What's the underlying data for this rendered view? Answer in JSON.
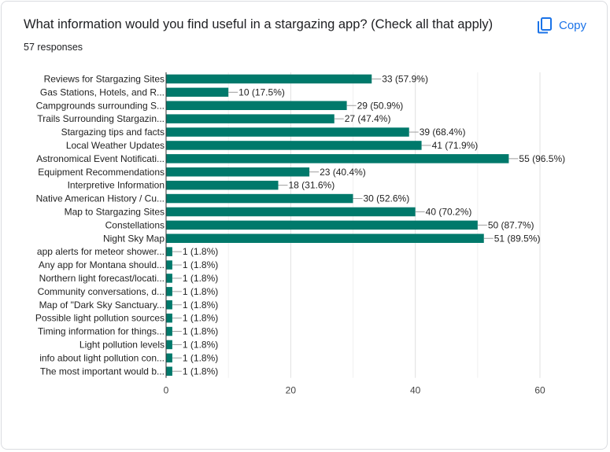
{
  "header": {
    "question": "What information would you find useful in a stargazing app? (Check all that apply)",
    "responses": "57 responses",
    "copy_label": "Copy",
    "copy_icon": "copy-icon"
  },
  "colors": {
    "bar": "#00796b",
    "accent": "#1a73e8",
    "grid": "#e0e0e0"
  },
  "chart_data": {
    "type": "bar",
    "orientation": "horizontal",
    "categories": [
      "Reviews for Stargazing Sites",
      "Gas Stations, Hotels, and R...",
      "Campgrounds surrounding S...",
      "Trails Surrounding Stargazin...",
      "Stargazing tips and facts",
      "Local Weather Updates",
      "Astronomical Event Notificati...",
      "Equipment Recommendations",
      "Interpretive Information",
      "Native American History / Cu...",
      "Map to Stargazing Sites",
      "Constellations",
      "Night Sky Map",
      "app alerts for meteor shower...",
      "Any app for Montana should...",
      "Northern light forecast/locati...",
      "Community conversations, d...",
      "Map of \"Dark Sky Sanctuary...",
      "Possible light pollution sources",
      "Timing information for things...",
      "Light pollution levels",
      "info about light pollution con...",
      "The most important would b..."
    ],
    "values": [
      33,
      10,
      29,
      27,
      39,
      41,
      55,
      23,
      18,
      30,
      40,
      50,
      51,
      1,
      1,
      1,
      1,
      1,
      1,
      1,
      1,
      1,
      1
    ],
    "labels": [
      "33 (57.9%)",
      "10 (17.5%)",
      "29 (50.9%)",
      "27 (47.4%)",
      "39 (68.4%)",
      "41 (71.9%)",
      "55 (96.5%)",
      "23 (40.4%)",
      "18 (31.6%)",
      "30 (52.6%)",
      "40 (70.2%)",
      "50 (87.7%)",
      "51 (89.5%)",
      "1 (1.8%)",
      "1 (1.8%)",
      "1 (1.8%)",
      "1 (1.8%)",
      "1 (1.8%)",
      "1 (1.8%)",
      "1 (1.8%)",
      "1 (1.8%)",
      "1 (1.8%)",
      "1 (1.8%)"
    ],
    "xlim": [
      0,
      60
    ],
    "xticks": [
      0,
      20,
      40,
      60
    ],
    "grid": true
  }
}
